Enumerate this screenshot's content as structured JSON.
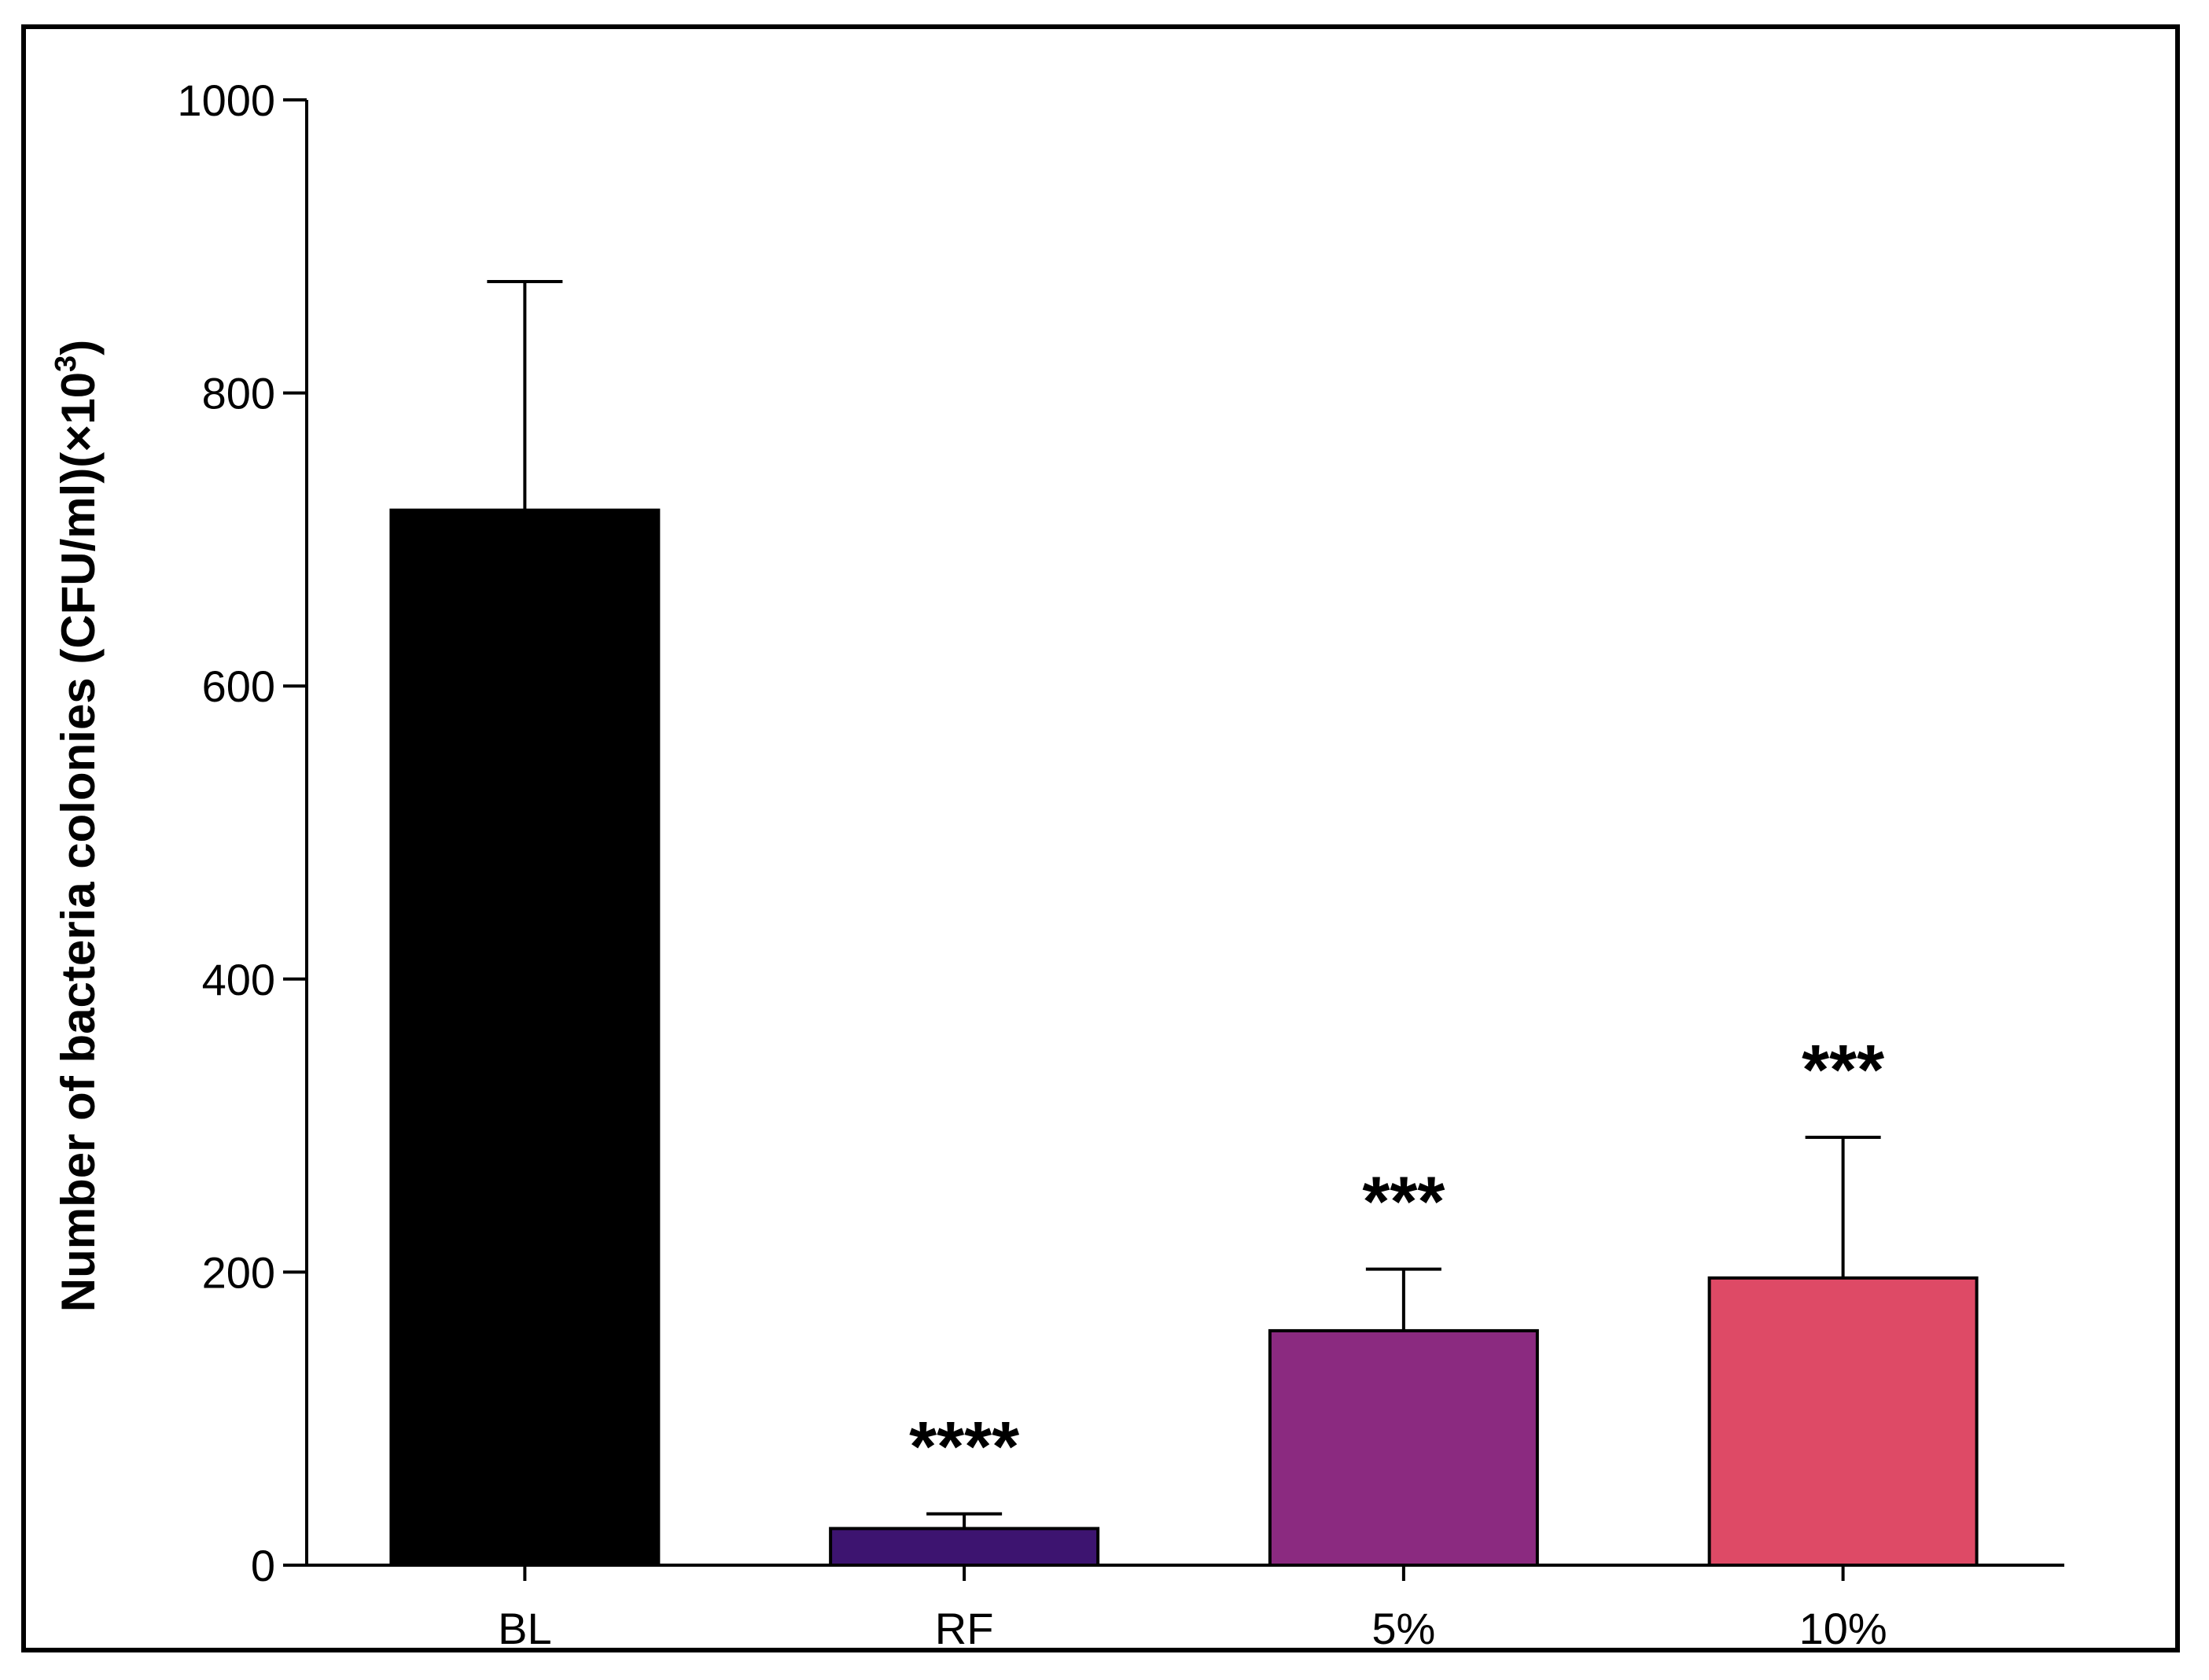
{
  "chart_data": {
    "type": "bar",
    "title": "",
    "xlabel": "",
    "ylabel": "Number of bacteria colonies (CFU/ml)(×10",
    "ylabel_sup": "3",
    "ylabel_close": ")",
    "ylim": [
      0,
      1000
    ],
    "yticks": [
      0,
      200,
      400,
      600,
      800,
      1000
    ],
    "ytick_labels": [
      "0",
      "200",
      "400",
      "600",
      "800",
      "1000"
    ],
    "categories": [
      "BL",
      "RF",
      "5%",
      "10%"
    ],
    "values": [
      720,
      25,
      160,
      196
    ],
    "error_upper": [
      876,
      35,
      202,
      292
    ],
    "significance": [
      "",
      "****",
      "***",
      "***"
    ],
    "colors": [
      "#000000",
      "#3d1470",
      "#8b2a80",
      "#de4a66"
    ],
    "grid": false,
    "legend": "none"
  }
}
